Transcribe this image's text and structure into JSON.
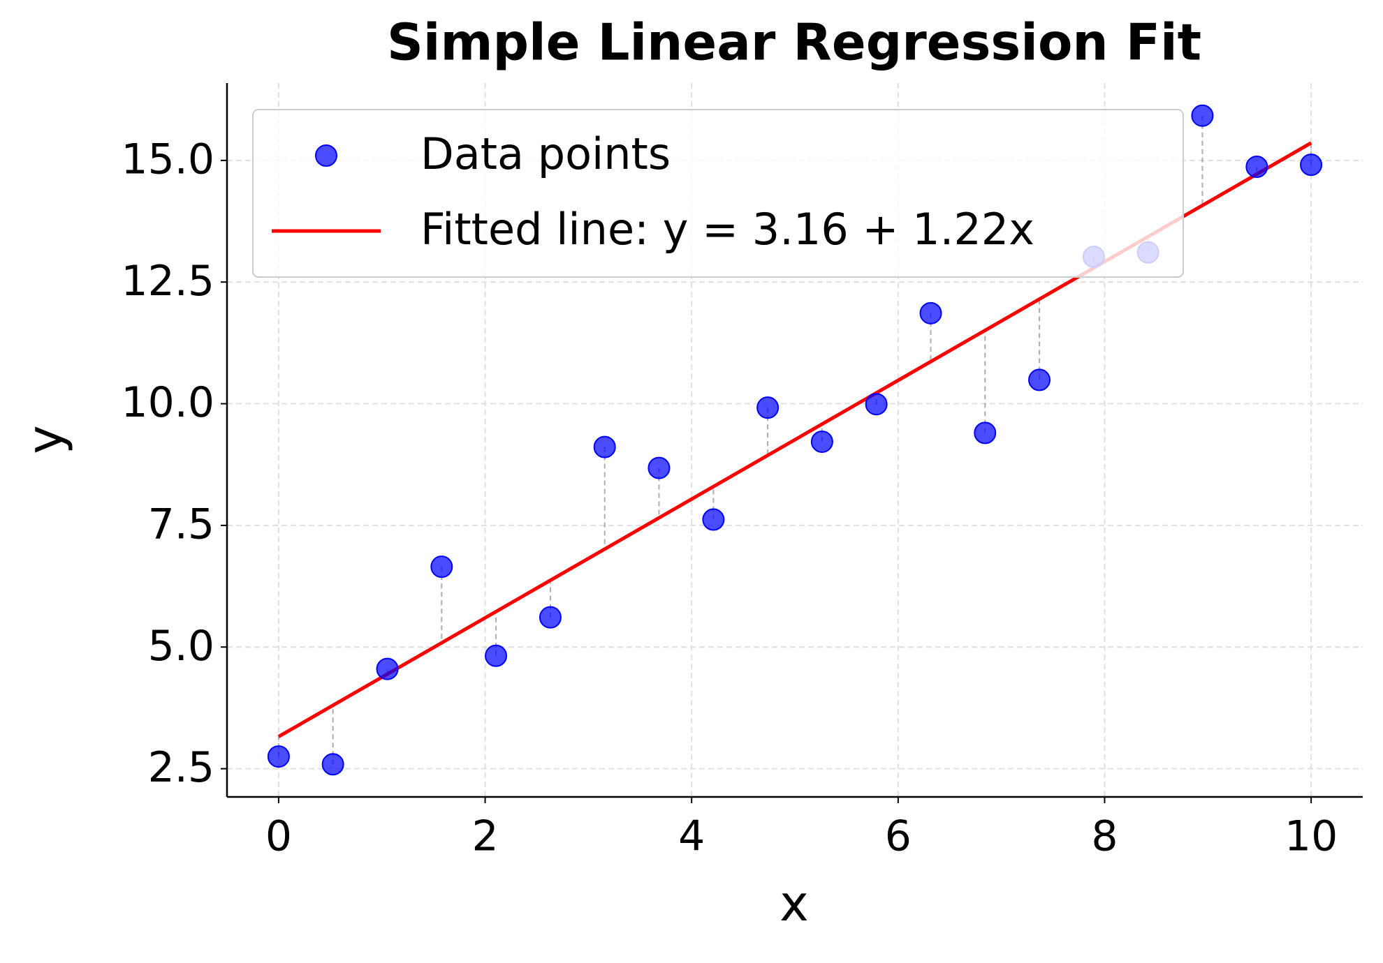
{
  "chart_data": {
    "type": "scatter",
    "title": "Simple Linear Regression Fit",
    "x_label": "x",
    "y_label": "y",
    "series": [
      {
        "name": "Data points",
        "type": "scatter",
        "color": "#0000ff",
        "x": [
          0,
          0.526,
          1.053,
          1.579,
          2.105,
          2.632,
          3.158,
          3.684,
          4.211,
          4.737,
          5.263,
          5.789,
          6.316,
          6.842,
          7.368,
          7.895,
          8.421,
          8.947,
          9.474,
          10
        ],
        "values": [
          2.75,
          2.59,
          4.55,
          6.65,
          4.82,
          5.61,
          9.11,
          8.68,
          7.62,
          9.92,
          9.22,
          9.99,
          11.86,
          9.4,
          10.49,
          13.02,
          13.11,
          15.92,
          14.87,
          14.91
        ]
      },
      {
        "name": "Fitted line: y = 3.16 + 1.22x",
        "type": "line",
        "color": "#ff0000",
        "x": [
          0,
          10
        ],
        "values": [
          3.16,
          15.36
        ]
      }
    ],
    "xlim": [
      -0.5,
      10.5
    ],
    "ylim": [
      1.92,
      16.59
    ],
    "xticks": [
      0,
      2,
      4,
      6,
      8,
      10
    ],
    "yticks": [
      {
        "value": 2.5,
        "label": "2.5"
      },
      {
        "value": 5,
        "label": "5.0"
      },
      {
        "value": 7.5,
        "label": "7.5"
      },
      {
        "value": 10,
        "label": "10.0"
      },
      {
        "value": 12.5,
        "label": "12.5"
      },
      {
        "value": 15,
        "label": "15.0"
      }
    ],
    "grid": true,
    "legend": "upper left"
  }
}
